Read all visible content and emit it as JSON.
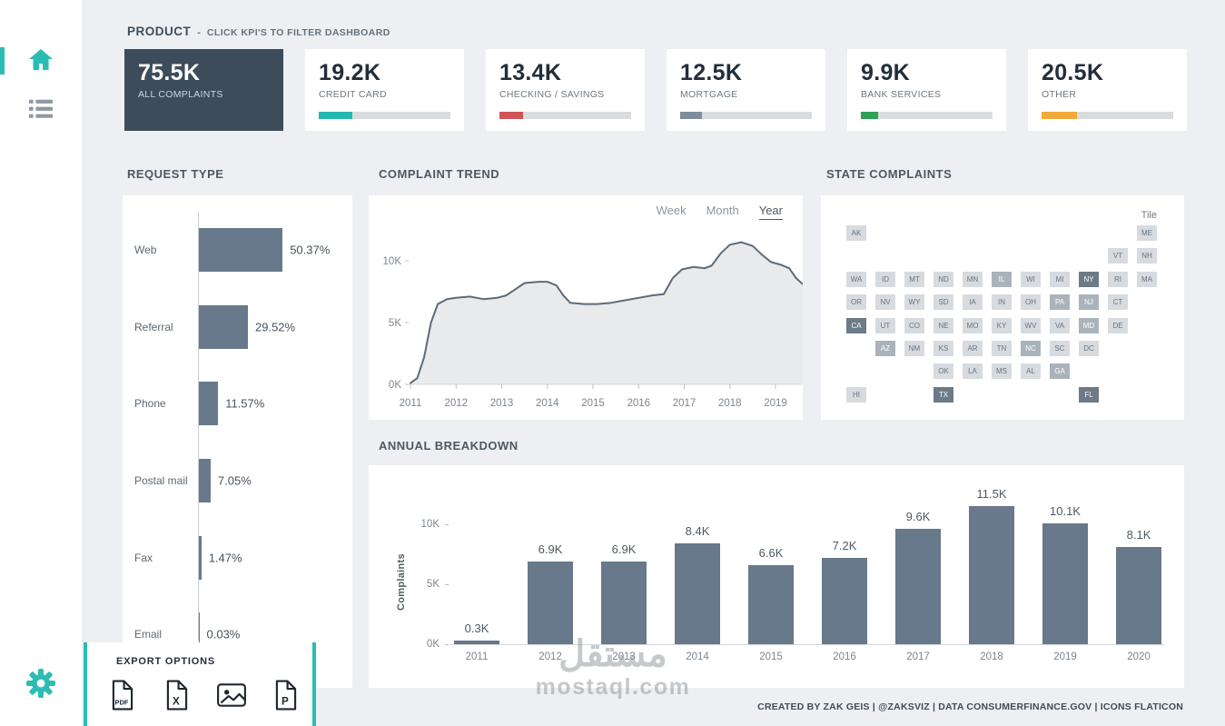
{
  "accent_color": "#29bdb4",
  "header": {
    "title": "PRODUCT",
    "separator": "-",
    "subtitle": "CLICK KPI'S TO FILTER DASHBOARD"
  },
  "kpis": [
    {
      "value": "75.5K",
      "label": "ALL COMPLAINTS",
      "selected": true
    },
    {
      "value": "19.2K",
      "label": "CREDIT CARD",
      "bar_color": "#24b8b0",
      "bar_pct": 25.4
    },
    {
      "value": "13.4K",
      "label": "CHECKING / SAVINGS",
      "bar_color": "#cf5458",
      "bar_pct": 17.7
    },
    {
      "value": "12.5K",
      "label": "MORTGAGE",
      "bar_color": "#7d8d9b",
      "bar_pct": 16.6
    },
    {
      "value": "9.9K",
      "label": "BANK SERVICES",
      "bar_color": "#2ea154",
      "bar_pct": 13.1
    },
    {
      "value": "20.5K",
      "label": "OTHER",
      "bar_color": "#f2a93b",
      "bar_pct": 27.2
    }
  ],
  "panels": {
    "request_type": {
      "title": "REQUEST TYPE"
    },
    "trend": {
      "title": "COMPLAINT TREND",
      "tabs": [
        {
          "label": "Week",
          "active": false
        },
        {
          "label": "Month",
          "active": false
        },
        {
          "label": "Year",
          "active": true
        }
      ]
    },
    "states": {
      "title": "STATE COMPLAINTS",
      "mode_label": "Tile"
    },
    "annual": {
      "title": "ANNUAL BREAKDOWN"
    }
  },
  "chart_data": [
    {
      "id": "request-type",
      "type": "bar",
      "orientation": "horizontal",
      "categories": [
        "Web",
        "Referral",
        "Phone",
        "Postal mail",
        "Fax",
        "Email"
      ],
      "values": [
        50.37,
        29.52,
        11.57,
        7.05,
        1.47,
        0.03
      ],
      "value_labels": [
        "50.37%",
        "29.52%",
        "11.57%",
        "7.05%",
        "1.47%",
        "0.03%"
      ],
      "unit": "percent"
    },
    {
      "id": "complaint-trend",
      "type": "area",
      "x": [
        2011.0,
        2011.15,
        2011.3,
        2011.45,
        2011.6,
        2011.8,
        2012.0,
        2012.3,
        2012.6,
        2012.9,
        2013.1,
        2013.3,
        2013.5,
        2013.8,
        2014.0,
        2014.2,
        2014.35,
        2014.5,
        2014.8,
        2015.1,
        2015.4,
        2015.7,
        2016.0,
        2016.3,
        2016.55,
        2016.75,
        2016.95,
        2017.2,
        2017.45,
        2017.6,
        2017.8,
        2018.0,
        2018.25,
        2018.5,
        2018.7,
        2018.9,
        2019.1,
        2019.3,
        2019.45,
        2019.6
      ],
      "y": [
        0.1,
        0.5,
        2.2,
        5.0,
        6.5,
        6.9,
        7.0,
        7.1,
        6.9,
        7.0,
        7.2,
        7.7,
        8.2,
        8.3,
        8.3,
        8.0,
        7.2,
        6.6,
        6.5,
        6.5,
        6.6,
        6.8,
        7.0,
        7.2,
        7.3,
        8.6,
        9.3,
        9.5,
        9.4,
        9.6,
        10.6,
        11.3,
        11.5,
        11.2,
        10.5,
        9.9,
        9.7,
        9.4,
        8.6,
        8.1
      ],
      "xticks": [
        "2011",
        "2012",
        "2013",
        "2014",
        "2015",
        "2016",
        "2017",
        "2018",
        "2019"
      ],
      "ytick_labels": [
        "0K",
        "5K",
        "10K"
      ],
      "ytick_values": [
        0,
        5,
        10
      ],
      "ylim": [
        0,
        12.8
      ],
      "unit": "K complaints"
    },
    {
      "id": "state-complaints",
      "type": "heatmap",
      "mode": "Tile",
      "tiles": [
        {
          "abbr": "AK",
          "col": 1,
          "row": 1,
          "level": 0
        },
        {
          "abbr": "ME",
          "col": 11,
          "row": 1,
          "level": 0
        },
        {
          "abbr": "VT",
          "col": 10,
          "row": 2,
          "level": 0
        },
        {
          "abbr": "NH",
          "col": 11,
          "row": 2,
          "level": 0
        },
        {
          "abbr": "WA",
          "col": 1,
          "row": 3,
          "level": 0
        },
        {
          "abbr": "ID",
          "col": 2,
          "row": 3,
          "level": 0
        },
        {
          "abbr": "MT",
          "col": 3,
          "row": 3,
          "level": 0
        },
        {
          "abbr": "ND",
          "col": 4,
          "row": 3,
          "level": 0
        },
        {
          "abbr": "MN",
          "col": 5,
          "row": 3,
          "level": 0
        },
        {
          "abbr": "IL",
          "col": 6,
          "row": 3,
          "level": 1
        },
        {
          "abbr": "WI",
          "col": 7,
          "row": 3,
          "level": 0
        },
        {
          "abbr": "MI",
          "col": 8,
          "row": 3,
          "level": 0
        },
        {
          "abbr": "NY",
          "col": 9,
          "row": 3,
          "level": 2
        },
        {
          "abbr": "RI",
          "col": 10,
          "row": 3,
          "level": 0
        },
        {
          "abbr": "MA",
          "col": 11,
          "row": 3,
          "level": 0
        },
        {
          "abbr": "OR",
          "col": 1,
          "row": 4,
          "level": 0
        },
        {
          "abbr": "NV",
          "col": 2,
          "row": 4,
          "level": 0
        },
        {
          "abbr": "WY",
          "col": 3,
          "row": 4,
          "level": 0
        },
        {
          "abbr": "SD",
          "col": 4,
          "row": 4,
          "level": 0
        },
        {
          "abbr": "IA",
          "col": 5,
          "row": 4,
          "level": 0
        },
        {
          "abbr": "IN",
          "col": 6,
          "row": 4,
          "level": 0
        },
        {
          "abbr": "OH",
          "col": 7,
          "row": 4,
          "level": 0
        },
        {
          "abbr": "PA",
          "col": 8,
          "row": 4,
          "level": 1
        },
        {
          "abbr": "NJ",
          "col": 9,
          "row": 4,
          "level": 1
        },
        {
          "abbr": "CT",
          "col": 10,
          "row": 4,
          "level": 0
        },
        {
          "abbr": "CA",
          "col": 1,
          "row": 5,
          "level": 2
        },
        {
          "abbr": "UT",
          "col": 2,
          "row": 5,
          "level": 0
        },
        {
          "abbr": "CO",
          "col": 3,
          "row": 5,
          "level": 0
        },
        {
          "abbr": "NE",
          "col": 4,
          "row": 5,
          "level": 0
        },
        {
          "abbr": "MO",
          "col": 5,
          "row": 5,
          "level": 0
        },
        {
          "abbr": "KY",
          "col": 6,
          "row": 5,
          "level": 0
        },
        {
          "abbr": "WV",
          "col": 7,
          "row": 5,
          "level": 0
        },
        {
          "abbr": "VA",
          "col": 8,
          "row": 5,
          "level": 0
        },
        {
          "abbr": "MD",
          "col": 9,
          "row": 5,
          "level": 1
        },
        {
          "abbr": "DE",
          "col": 10,
          "row": 5,
          "level": 0
        },
        {
          "abbr": "AZ",
          "col": 2,
          "row": 6,
          "level": 1
        },
        {
          "abbr": "NM",
          "col": 3,
          "row": 6,
          "level": 0
        },
        {
          "abbr": "KS",
          "col": 4,
          "row": 6,
          "level": 0
        },
        {
          "abbr": "AR",
          "col": 5,
          "row": 6,
          "level": 0
        },
        {
          "abbr": "TN",
          "col": 6,
          "row": 6,
          "level": 0
        },
        {
          "abbr": "NC",
          "col": 7,
          "row": 6,
          "level": 1
        },
        {
          "abbr": "SC",
          "col": 8,
          "row": 6,
          "level": 0
        },
        {
          "abbr": "DC",
          "col": 9,
          "row": 6,
          "level": 0
        },
        {
          "abbr": "OK",
          "col": 4,
          "row": 7,
          "level": 0
        },
        {
          "abbr": "LA",
          "col": 5,
          "row": 7,
          "level": 0
        },
        {
          "abbr": "MS",
          "col": 6,
          "row": 7,
          "level": 0
        },
        {
          "abbr": "AL",
          "col": 7,
          "row": 7,
          "level": 0
        },
        {
          "abbr": "GA",
          "col": 8,
          "row": 7,
          "level": 1
        },
        {
          "abbr": "HI",
          "col": 1,
          "row": 8,
          "level": 0
        },
        {
          "abbr": "TX",
          "col": 4,
          "row": 8,
          "level": 2
        },
        {
          "abbr": "FL",
          "col": 9,
          "row": 8,
          "level": 2
        }
      ]
    },
    {
      "id": "annual-breakdown",
      "type": "bar",
      "categories": [
        "2011",
        "2012",
        "2013",
        "2014",
        "2015",
        "2016",
        "2017",
        "2018",
        "2019",
        "2020"
      ],
      "values": [
        0.3,
        6.9,
        6.9,
        8.4,
        6.6,
        7.2,
        9.6,
        11.5,
        10.1,
        8.1
      ],
      "value_labels": [
        "0.3K",
        "6.9K",
        "6.9K",
        "8.4K",
        "6.6K",
        "7.2K",
        "9.6K",
        "11.5K",
        "10.1K",
        "8.1K"
      ],
      "ylabel": "Complaints",
      "ytick_labels": [
        "0K",
        "5K",
        "10K"
      ],
      "ytick_values": [
        0,
        5,
        10
      ],
      "ylim": [
        0,
        12.5
      ]
    }
  ],
  "export": {
    "title": "EXPORT OPTIONS",
    "options": [
      {
        "id": "pdf",
        "glyph": "PDF"
      },
      {
        "id": "excel",
        "glyph": "X"
      },
      {
        "id": "image",
        "glyph": ""
      },
      {
        "id": "powerpoint",
        "glyph": "P"
      }
    ]
  },
  "sidebar": {
    "icons": [
      "home-icon",
      "list-icon",
      "gear-icon"
    ]
  },
  "footer": {
    "credit": "CREATED BY ZAK GEIS  |  @ZAKSVIZ  |  DATA CONSUMERFINANCE.GOV | ICONS FLATICON"
  },
  "watermark": {
    "line1": "مستقل",
    "line2": "mostaql.com"
  }
}
